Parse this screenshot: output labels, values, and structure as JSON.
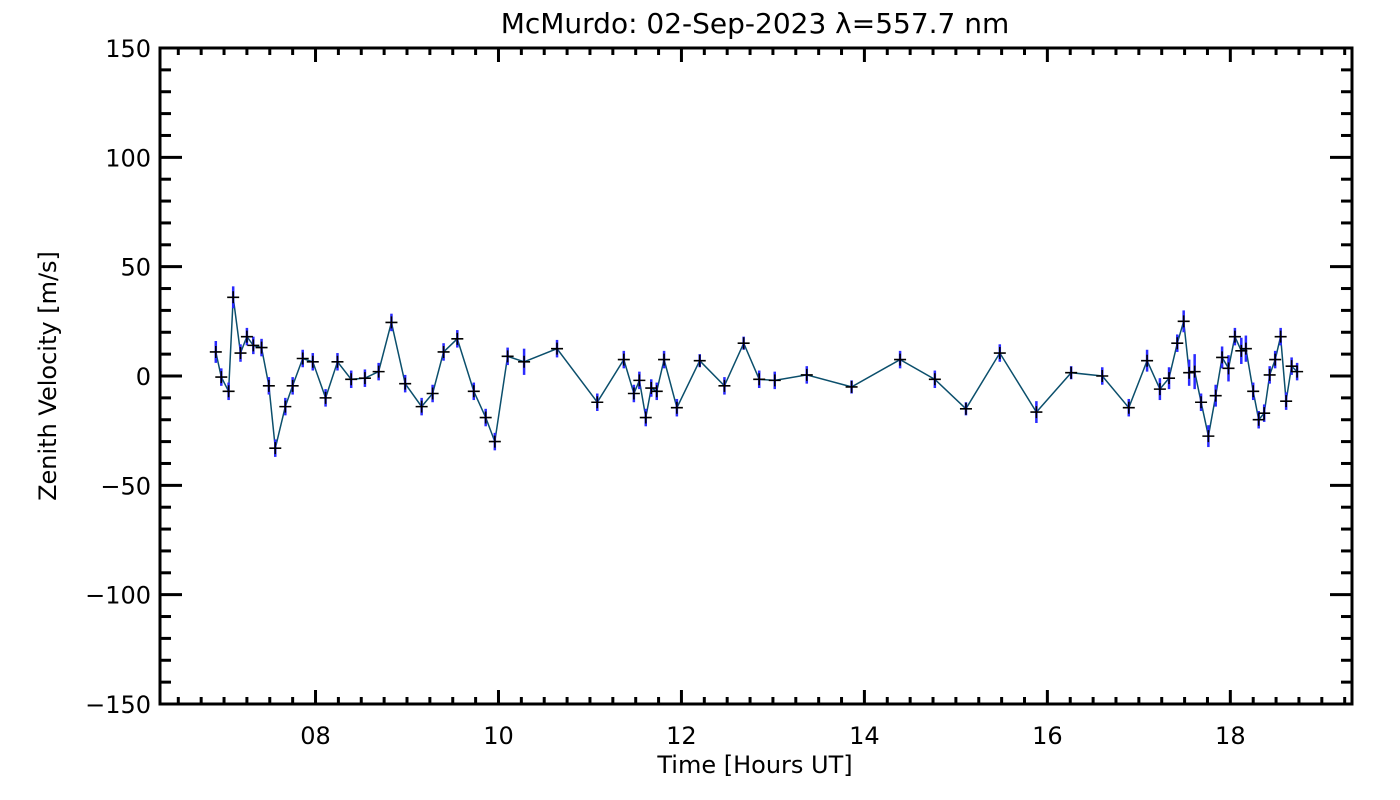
{
  "chart_data": {
    "type": "line",
    "title": "McMurdo: 02-Sep-2023 λ=557.7 nm",
    "xlabel": "Time [Hours UT]",
    "ylabel": "Zenith Velocity [m/s]",
    "xlim": [
      6.3,
      19.33
    ],
    "ylim": [
      -150,
      150
    ],
    "x_ticks": [
      8,
      10,
      12,
      14,
      16,
      18
    ],
    "x_tick_labels": [
      "08",
      "10",
      "12",
      "14",
      "16",
      "18"
    ],
    "y_ticks": [
      150,
      100,
      50,
      0,
      -50,
      -100,
      -150
    ],
    "y_tick_labels": [
      "150",
      "100",
      "50",
      "0",
      "−50",
      "−100",
      "−150"
    ],
    "grid": false,
    "colors": {
      "line": "#0b4f6c",
      "errorbar": "#2a2aff",
      "marker": "#000000",
      "axes": "#000000"
    },
    "series": [
      {
        "name": "zenith velocity",
        "x": [
          6.91,
          6.97,
          7.05,
          7.1,
          7.18,
          7.25,
          7.32,
          7.41,
          7.49,
          7.56,
          7.67,
          7.75,
          7.86,
          7.97,
          8.11,
          8.24,
          8.39,
          8.54,
          8.69,
          8.83,
          8.98,
          9.16,
          9.28,
          9.4,
          9.55,
          9.73,
          9.86,
          9.96,
          10.1,
          10.28,
          10.64,
          11.08,
          11.37,
          11.48,
          11.54,
          11.61,
          11.67,
          11.73,
          11.81,
          11.95,
          12.2,
          12.47,
          12.68,
          12.85,
          13.02,
          13.37,
          13.86,
          14.39,
          14.77,
          15.11,
          15.48,
          15.88,
          16.26,
          16.6,
          16.89,
          17.09,
          17.23,
          17.33,
          17.42,
          17.49,
          17.55,
          17.61,
          17.68,
          17.76,
          17.84,
          17.91,
          17.98,
          18.05,
          18.12,
          18.17,
          18.25,
          18.31,
          18.37,
          18.43,
          18.49,
          18.55,
          18.61,
          18.67,
          18.73
        ],
        "y": [
          11,
          -0.5,
          -7,
          36,
          10.5,
          18,
          14,
          13,
          -4.5,
          -33,
          -14,
          -4.5,
          8,
          6.5,
          -10,
          6.5,
          -1.5,
          -1,
          2,
          24.5,
          -3.5,
          -14,
          -8,
          11,
          17,
          -7,
          -19,
          -30,
          9,
          6.5,
          12.5,
          -12,
          7.5,
          -8,
          -2,
          -19,
          -5.5,
          -7,
          7.5,
          -14.5,
          7,
          -4.5,
          15,
          -1.5,
          -2,
          0.5,
          -5,
          7.5,
          -1.5,
          -15,
          10.5,
          -16.5,
          1.5,
          0,
          -14.5,
          7,
          -6,
          -1,
          15,
          25,
          1.5,
          2,
          -12,
          -27.5,
          -9,
          8.5,
          3.5,
          18,
          11.5,
          12.5,
          -7,
          -20,
          -17,
          0.5,
          7.5,
          18,
          -11.5,
          4.5,
          2
        ],
        "error": [
          5,
          4,
          4,
          5,
          4,
          4,
          4,
          4,
          4,
          4,
          4,
          4,
          4,
          4,
          4,
          4,
          4,
          4,
          4,
          4,
          4,
          4,
          4,
          4,
          4,
          4,
          4,
          4,
          4,
          6,
          4,
          4,
          4,
          4,
          4,
          4,
          4,
          4,
          4,
          4,
          3,
          4,
          3,
          4,
          4,
          4,
          3,
          4,
          4,
          3,
          4,
          5,
          3,
          4,
          4,
          5,
          5,
          5,
          4,
          5,
          6,
          8,
          4,
          5,
          5,
          5,
          6,
          4,
          6,
          6,
          4,
          4,
          4,
          4,
          4,
          4,
          4,
          4,
          4
        ]
      }
    ]
  }
}
